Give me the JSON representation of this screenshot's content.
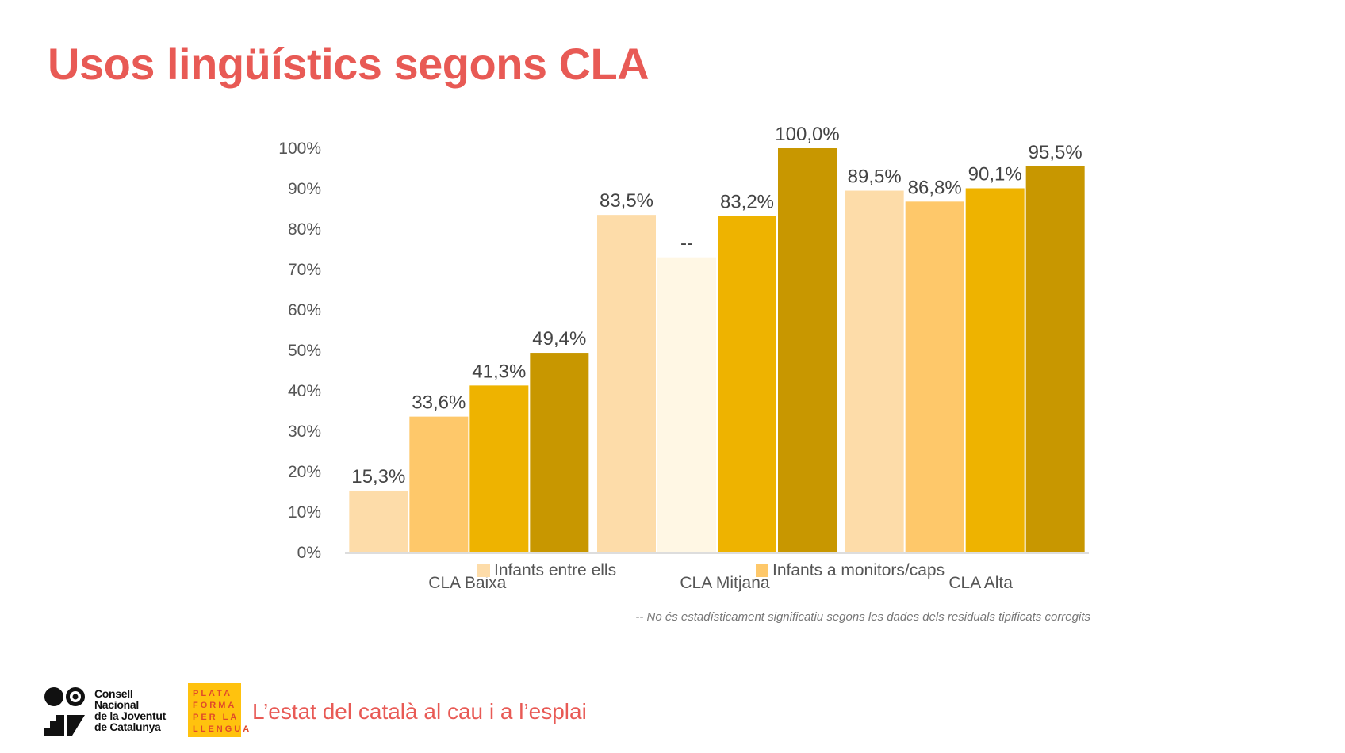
{
  "title": "Usos lingüístics segons CLA",
  "chart_data": {
    "type": "bar",
    "title": "Usos lingüístics segons CLA",
    "categories": [
      "CLA Baixa",
      "CLA Mitjana",
      "CLA Alta"
    ],
    "series": [
      {
        "name": "Infants entre ells",
        "color": "#FDDCA9",
        "values": [
          15.3,
          83.5,
          89.5
        ],
        "labels": [
          "15,3%",
          "83,5%",
          "89,5%"
        ]
      },
      {
        "name": "Infants a monitors/caps",
        "color": "#FEC86A",
        "values": [
          33.6,
          73.0,
          86.8
        ],
        "labels": [
          "33,6%",
          "--",
          "86,8%"
        ]
      },
      {
        "name": "",
        "color": "#EEB300",
        "values": [
          41.3,
          83.2,
          90.1
        ],
        "labels": [
          "41,3%",
          "83,2%",
          "90,1%"
        ]
      },
      {
        "name": "",
        "color": "#C89700",
        "values": [
          49.4,
          100.0,
          95.5
        ],
        "labels": [
          "49,4%",
          "100,0%",
          "95,5%"
        ]
      }
    ],
    "non_significant_color": "#FFF7E4",
    "non_significant": [
      [
        1,
        1
      ]
    ],
    "yticks": [
      "0%",
      "10%",
      "20%",
      "30%",
      "40%",
      "50%",
      "60%",
      "70%",
      "80%",
      "90%",
      "100%"
    ],
    "ylim": [
      0,
      100
    ],
    "xlabel": "",
    "ylabel": "",
    "grid": false,
    "legend_placement": "bottom",
    "legend": [
      "Infants entre ells",
      "Infants a monitors/caps"
    ]
  },
  "footnote": "-- No és estadísticament significatiu segons les dades dels residuals tipificats corregits",
  "footer": {
    "org1": [
      "Consell",
      "Nacional",
      "de la Joventut",
      "de Catalunya"
    ],
    "org2": [
      "PLATA",
      "FORMA",
      "PER LA",
      "LLENGUA"
    ],
    "subtitle": "L’estat del català al cau i a l’esplai"
  }
}
